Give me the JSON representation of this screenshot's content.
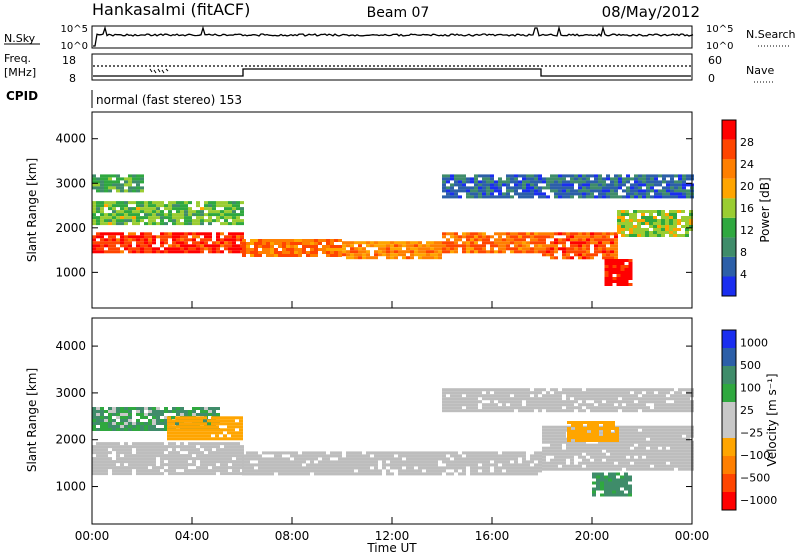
{
  "header": {
    "station": "Hankasalmi (fitACF)",
    "beam": "Beam 07",
    "date": "08/May/2012"
  },
  "panels": {
    "sky": {
      "left_label": "N.Sky",
      "top_tick": "10^5",
      "bottom_tick": "10^0",
      "right_top_tick": "10^5",
      "right_bottom_tick": "10^0",
      "right_label": "N.Search"
    },
    "freq": {
      "left_label": "Freq.",
      "unit_label": "[MHz]",
      "top_tick": "18",
      "bottom_tick": "8",
      "right_top_tick": "60",
      "right_bottom_tick": "0",
      "right_label": "Nave"
    },
    "cpid": {
      "label": "CPID",
      "mode": "normal (fast stereo) 153"
    }
  },
  "colors": {
    "power_scale": [
      "#1a2ef0",
      "#2c5fa8",
      "#3f8c6a",
      "#2fa83f",
      "#9acd32",
      "#ffa500",
      "#ff7f00",
      "#ff4500",
      "#ff0000"
    ],
    "velocity_scale": [
      "#1a2ef0",
      "#2c5fa8",
      "#3f8c6a",
      "#2fa83f",
      "#c8c8c8",
      "#c8c8c8",
      "#ffa500",
      "#ff7f00",
      "#ff4500",
      "#ff0000"
    ],
    "ground_scatter": "#bdbdbd"
  },
  "chart_data": [
    {
      "type": "heatmap",
      "name": "power",
      "ylabel": "Slant Range [km]",
      "yticks": [
        "1000",
        "2000",
        "3000",
        "4000"
      ],
      "ylim": [
        200,
        4600
      ],
      "xlim": [
        0,
        24
      ],
      "xticks": [
        "00:00",
        "04:00",
        "08:00",
        "12:00",
        "16:00",
        "20:00",
        "00:00"
      ],
      "colorbar": {
        "label": "Power [dB]",
        "ticks": [
          "4",
          "8",
          "12",
          "16",
          "20",
          "24",
          "28"
        ],
        "range": [
          0,
          32
        ]
      },
      "bands": [
        {
          "t0": 0,
          "t1": 6,
          "r0": 1450,
          "r1": 1900,
          "level": 28
        },
        {
          "t0": 0,
          "t1": 6,
          "r0": 2100,
          "r1": 2600,
          "level": 14
        },
        {
          "t0": 6,
          "t1": 10,
          "r0": 1350,
          "r1": 1750,
          "level": 24
        },
        {
          "t0": 10,
          "t1": 14,
          "r0": 1350,
          "r1": 1700,
          "level": 22
        },
        {
          "t0": 14,
          "t1": 18,
          "r0": 1450,
          "r1": 1900,
          "level": 24
        },
        {
          "t0": 18,
          "t1": 21,
          "r0": 1300,
          "r1": 1900,
          "level": 26
        },
        {
          "t0": 20.5,
          "t1": 21.5,
          "r0": 700,
          "r1": 1300,
          "level": 30
        },
        {
          "t0": 21,
          "t1": 24,
          "r0": 1800,
          "r1": 2400,
          "level": 16
        },
        {
          "t0": 0,
          "t1": 2,
          "r0": 2800,
          "r1": 3200,
          "level": 12
        },
        {
          "t0": 14,
          "t1": 24,
          "r0": 2700,
          "r1": 3200,
          "level": 6
        }
      ]
    },
    {
      "type": "heatmap",
      "name": "velocity",
      "ylabel": "Slant Range [km]",
      "yticks": [
        "1000",
        "2000",
        "3000",
        "4000"
      ],
      "ylim": [
        200,
        4600
      ],
      "xlim": [
        0,
        24
      ],
      "xticks": [
        "00:00",
        "04:00",
        "08:00",
        "12:00",
        "16:00",
        "20:00",
        "00:00"
      ],
      "xlabel": "Time UT",
      "colorbar": {
        "label": "Velocity [m s⁻¹]",
        "ticks": [
          "1000",
          "500",
          "100",
          "25",
          "−25",
          "−100",
          "−500",
          "−1000"
        ]
      },
      "bands": [
        {
          "t0": 0,
          "t1": 6,
          "r0": 1300,
          "r1": 1950,
          "level": "gs"
        },
        {
          "t0": 6,
          "t1": 18,
          "r0": 1250,
          "r1": 1750,
          "level": "gs"
        },
        {
          "t0": 18,
          "t1": 24,
          "r0": 1400,
          "r1": 2300,
          "level": "gs"
        },
        {
          "t0": 0,
          "t1": 5,
          "r0": 2200,
          "r1": 2700,
          "level": 100
        },
        {
          "t0": 3,
          "t1": 6,
          "r0": 2000,
          "r1": 2500,
          "level": -200
        },
        {
          "t0": 19,
          "t1": 21,
          "r0": 2000,
          "r1": 2400,
          "level": -300
        },
        {
          "t0": 20,
          "t1": 21.5,
          "r0": 800,
          "r1": 1300,
          "level": 150
        },
        {
          "t0": 14,
          "t1": 24,
          "r0": 2600,
          "r1": 3100,
          "level": "gs"
        }
      ]
    }
  ]
}
